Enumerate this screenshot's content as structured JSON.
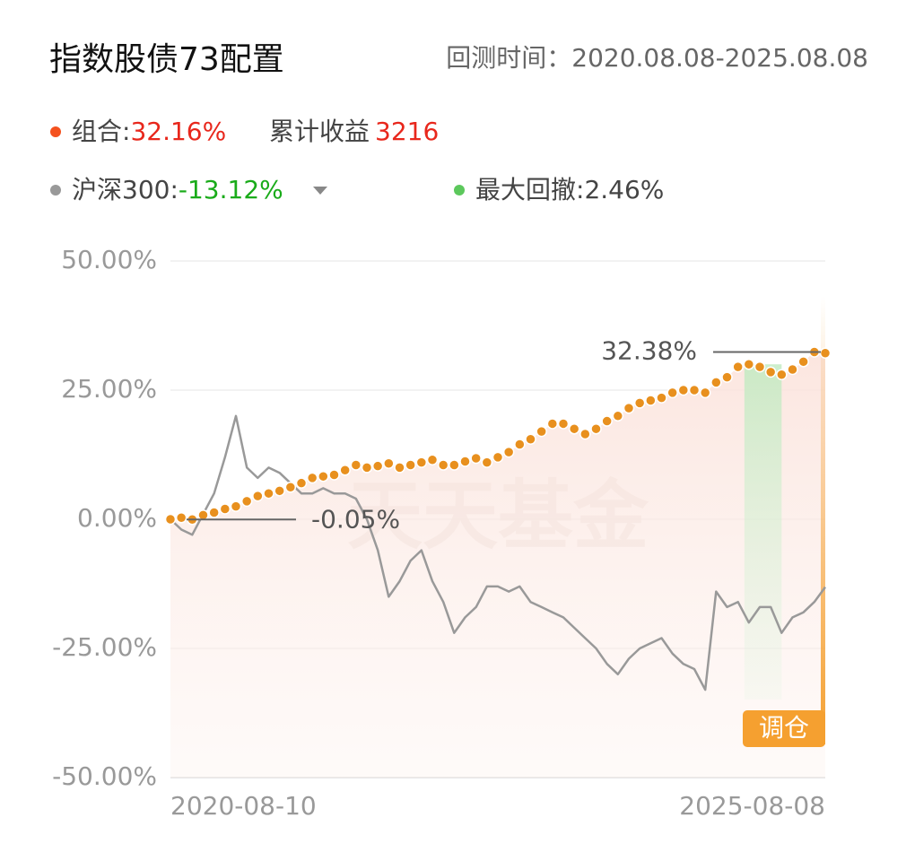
{
  "header": {
    "title": "指数股债73配置",
    "backtest_period": "回测时间：2020.08.08-2025.08.08"
  },
  "stats": {
    "cumulative_label": "累计收益",
    "cumulative_value": "3216",
    "portfolio_return": "32.16%",
    "index_return": "-13.12%",
    "drawdown_label": "最大回撤:",
    "drawdown_value": "2.46%"
  },
  "chart_data": {
    "type": "line",
    "categories": [
      "2020-08-10",
      null,
      null,
      null,
      null,
      null,
      null,
      null,
      null,
      null,
      null,
      null,
      null,
      null,
      null,
      null,
      null,
      null,
      null,
      null,
      null,
      null,
      null,
      null,
      null,
      null,
      null,
      null,
      null,
      null,
      null,
      null,
      null,
      null,
      null,
      null,
      null,
      null,
      null,
      null,
      null,
      null,
      null,
      null,
      null,
      null,
      null,
      null,
      null,
      null,
      null,
      null,
      null,
      null,
      null,
      null,
      null,
      null,
      null,
      null,
      "2025-08-08"
    ],
    "series": [
      {
        "name": "组合:",
        "color": "#e8901e",
        "values": [
          0,
          0.3,
          -0.05,
          0.8,
          1.3,
          2,
          2.5,
          3.5,
          4.5,
          5,
          5.5,
          6.2,
          7,
          8,
          8.3,
          8.6,
          9.5,
          10.5,
          10,
          10.3,
          10.8,
          10,
          10.5,
          11,
          11.5,
          10.5,
          10.5,
          11.2,
          11.8,
          11,
          12,
          13,
          14.5,
          15.5,
          17,
          18.5,
          18.5,
          17.5,
          16.5,
          17.5,
          19,
          20,
          21.5,
          22.5,
          23,
          23.5,
          24.5,
          25,
          25,
          24.5,
          26.5,
          27.5,
          29.5,
          30,
          29.5,
          28.5,
          28,
          29,
          30.5,
          32.38,
          32.16
        ]
      },
      {
        "name": "沪深300:",
        "color": "#999999",
        "values": [
          0,
          -2,
          -3,
          1,
          5,
          12,
          20,
          10,
          8,
          10,
          9,
          7,
          5,
          5,
          6,
          5,
          5,
          4,
          0,
          -6,
          -15,
          -12,
          -8,
          -6,
          -12,
          -16,
          -22,
          -19,
          -17,
          -13,
          -13,
          -14,
          -13,
          -16,
          -17,
          -18,
          -19,
          -21,
          -23,
          -25,
          -28,
          -30,
          -27,
          -25,
          -24,
          -23,
          -26,
          -28,
          -29,
          -33,
          -14,
          -17,
          -16,
          -20,
          -17,
          -17,
          -22,
          -19,
          -18,
          -16,
          -13.12
        ]
      }
    ],
    "ylim": [
      -50,
      50
    ],
    "yticks": [
      {
        "value": -50,
        "label": "-50.00%"
      },
      {
        "value": -25,
        "label": "-25.00%"
      },
      {
        "value": 0,
        "label": "0.00%"
      },
      {
        "value": 25,
        "label": "25.00%"
      },
      {
        "value": 50,
        "label": "50.00%"
      }
    ],
    "grid": true,
    "max_label": {
      "value": 32.38,
      "label": "32.38%"
    },
    "min_label": {
      "value": -0.05,
      "label": "-0.05%"
    },
    "rebalance_label": "调仓",
    "watermark": "天天基金"
  }
}
